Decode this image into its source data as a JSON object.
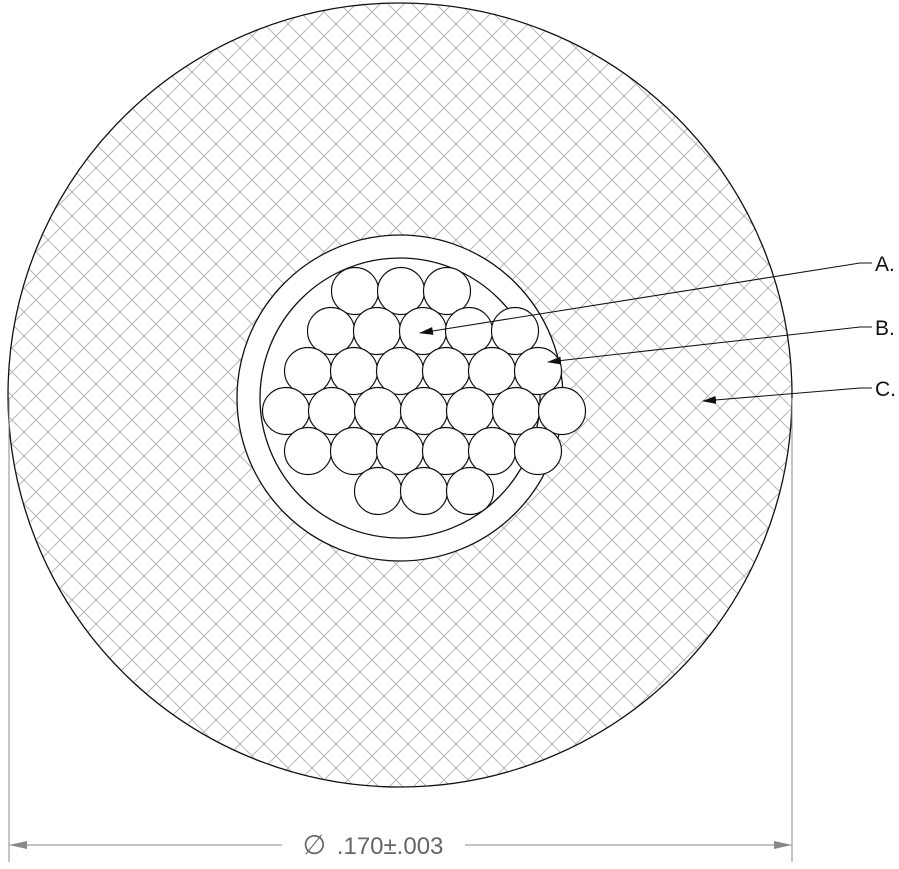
{
  "callouts": [
    {
      "id": "A",
      "label": "A.",
      "target": "conductor-strands"
    },
    {
      "id": "B",
      "label": "B.",
      "target": "inner-insulation"
    },
    {
      "id": "C",
      "label": "C.",
      "target": "outer-jacket"
    }
  ],
  "dimension": {
    "symbol": "∅",
    "value": ".170±.003"
  },
  "strand_rows": [
    3,
    5,
    6,
    7,
    6,
    3
  ],
  "colors": {
    "line": "#111111",
    "dimension_line": "#888888",
    "hatch": "#b8b8b8"
  }
}
